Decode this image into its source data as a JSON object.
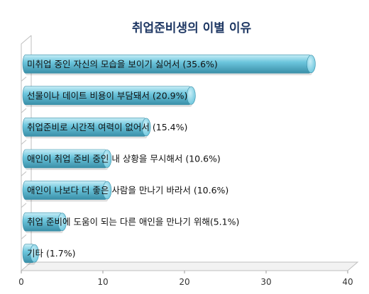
{
  "chart_data": {
    "type": "bar",
    "orientation": "horizontal",
    "title": "취업준비생의 이별 이유",
    "categories": [
      "미취업 중인 자신의 모습을 보이기 싫어서",
      "선물이나 데이트 비용이 부담돼서",
      "취업준비로 시간적 여력이 없어서",
      "애인이 취업 준비 중인 내 상황을 무시해서",
      "애인이 나보다 더 좋은 사람을 만나기 바라서",
      "취업 준비에 도움이 되는 다른 애인을 만나기 위해",
      "기타"
    ],
    "labels": [
      "미취업 중인 자신의 모습을 보이기 싫어서 (35.6%)",
      "선물이나 데이트 비용이 부담돼서 (20.9%)",
      "취업준비로 시간적 여력이 없어서 (15.4%)",
      "애인이 취업 준비 중인 내 상황을 무시해서 (10.6%)",
      "애인이 나보다 더 좋은 사람을 만나기 바라서 (10.6%)",
      "취업 준비에 도움이 되는 다른 애인을 만나기 위해(5.1%)",
      "기타 (1.7%)"
    ],
    "values": [
      35.6,
      20.9,
      15.4,
      10.6,
      10.6,
      5.1,
      1.7
    ],
    "xlim": [
      0,
      40
    ],
    "xticks": [
      "0",
      "10",
      "20",
      "30",
      "40"
    ],
    "grid": false,
    "legend": "none",
    "bar_color": "#6cc6dd",
    "bar_highlight": "#c9eef7",
    "bar_shadow": "#3a8fa8"
  }
}
